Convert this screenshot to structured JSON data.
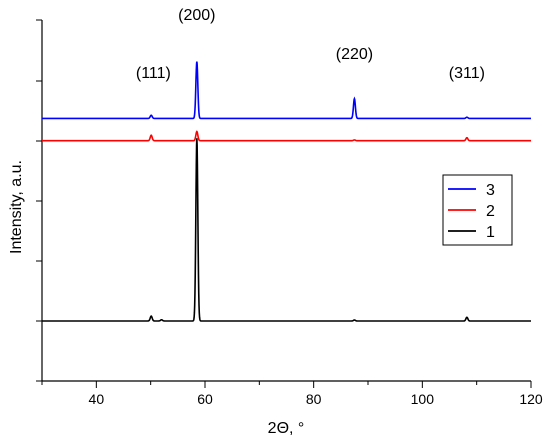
{
  "chart_data": {
    "type": "line",
    "title": "",
    "xlabel": "2Θ, °",
    "ylabel": "Intensity, a.u.",
    "xlim": [
      30,
      120
    ],
    "xticks": [
      40,
      60,
      80,
      100,
      120
    ],
    "grid": false,
    "legend_position": "right",
    "peak_labels": [
      {
        "text": "(111)",
        "x": 50.5
      },
      {
        "text": "(200)",
        "x": 58.5
      },
      {
        "text": "(220)",
        "x": 87.5
      },
      {
        "text": "(311)",
        "x": 108.2
      }
    ],
    "series": [
      {
        "name": "3",
        "color": "#0000ff",
        "baseline": 0.82,
        "peaks": [
          [
            50.1,
            0.013
          ],
          [
            58.5,
            0.23
          ],
          [
            87.5,
            0.08
          ],
          [
            108.2,
            0.005
          ]
        ]
      },
      {
        "name": "2",
        "color": "#ff0000",
        "baseline": 0.73,
        "peaks": [
          [
            50.1,
            0.022
          ],
          [
            58.5,
            0.037
          ],
          [
            87.5,
            0.003
          ],
          [
            108.2,
            0.012
          ]
        ]
      },
      {
        "name": "1",
        "color": "#000000",
        "baseline": 0.0,
        "peaks": [
          [
            50.1,
            0.02
          ],
          [
            52.0,
            0.005
          ],
          [
            58.5,
            0.74
          ],
          [
            87.5,
            0.004
          ],
          [
            108.2,
            0.015
          ]
        ]
      }
    ]
  }
}
